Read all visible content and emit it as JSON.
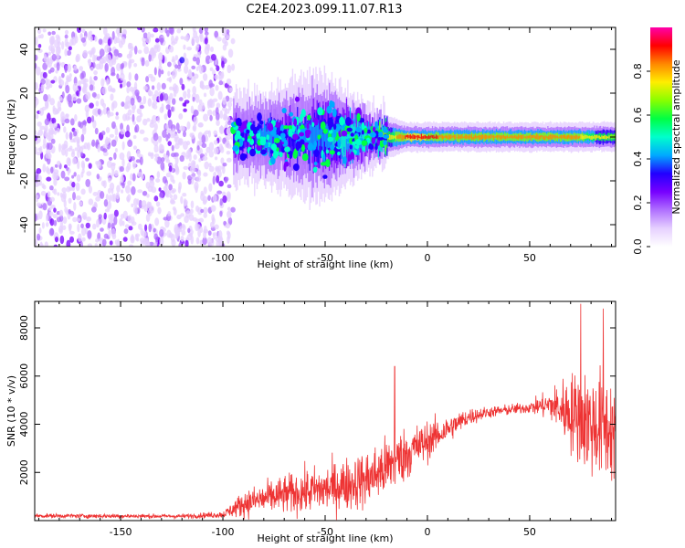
{
  "title": "C2E4.2023.099.11.07.R13",
  "colors": {
    "snr_line": "#ee3333",
    "background": "#ffffff",
    "colormap": [
      "#ffffff",
      "#e6d0ff",
      "#b070ff",
      "#7700ff",
      "#2200ff",
      "#00aaff",
      "#00ffcc",
      "#00ff44",
      "#88ff00",
      "#ffee00",
      "#ff8800",
      "#ff0000",
      "#ff00aa"
    ]
  },
  "chart_data": [
    {
      "type": "heatmap",
      "title": "",
      "xlabel": "Height of straight line (km)",
      "ylabel": "Frequency (Hz)",
      "xlim": [
        -192,
        92
      ],
      "ylim": [
        -50,
        50
      ],
      "xticks": [
        -150,
        -100,
        -50,
        0,
        50
      ],
      "yticks": [
        -40,
        -20,
        0,
        20,
        40
      ],
      "colorbar": {
        "label": "Normalized spectral amplitude",
        "range": [
          0,
          1
        ],
        "ticks": [
          "0.0",
          "0.2",
          "0.4",
          "0.6",
          "0.8"
        ],
        "tick_values": [
          0,
          0.2,
          0.4,
          0.6,
          0.8
        ]
      },
      "features": {
        "noise_region_x": [
          -192,
          -95
        ],
        "noise_frequency_span": [
          -50,
          50
        ],
        "signal_center_hz": 0,
        "signal_band": [
          {
            "x": -95,
            "halfwidth_hz": 8,
            "amp": 0.3
          },
          {
            "x": -80,
            "halfwidth_hz": 8,
            "amp": 0.4
          },
          {
            "x": -70,
            "halfwidth_hz": 10,
            "amp": 0.35
          },
          {
            "x": -50,
            "halfwidth_hz": 12,
            "amp": 0.45
          },
          {
            "x": -30,
            "halfwidth_hz": 6,
            "amp": 0.5
          },
          {
            "x": -10,
            "halfwidth_hz": 3,
            "amp": 0.9
          },
          {
            "x": 20,
            "halfwidth_hz": 3,
            "amp": 0.85
          },
          {
            "x": 50,
            "halfwidth_hz": 3,
            "amp": 0.8
          },
          {
            "x": 65,
            "halfwidth_hz": 3,
            "amp": 0.85
          },
          {
            "x": 90,
            "halfwidth_hz": 3,
            "amp": 0.7
          }
        ]
      }
    },
    {
      "type": "line",
      "title": "",
      "xlabel": "Height of straight line (km)",
      "ylabel": "SNR (10 * v/v)",
      "xlim": [
        -192,
        92
      ],
      "ylim": [
        0,
        9100
      ],
      "xticks": [
        -150,
        -100,
        -50,
        0,
        50
      ],
      "yticks": [
        2000,
        4000,
        6000,
        8000
      ],
      "series": [
        {
          "envelope": [
            {
              "x": -192,
              "mean": 200,
              "spread": 100
            },
            {
              "x": -120,
              "mean": 180,
              "spread": 100
            },
            {
              "x": -100,
              "mean": 250,
              "spread": 150
            },
            {
              "x": -90,
              "mean": 700,
              "spread": 600
            },
            {
              "x": -75,
              "mean": 1000,
              "spread": 800
            },
            {
              "x": -60,
              "mean": 1200,
              "spread": 1000
            },
            {
              "x": -50,
              "mean": 1300,
              "spread": 1100
            },
            {
              "x": -40,
              "mean": 1500,
              "spread": 1200
            },
            {
              "x": -30,
              "mean": 1700,
              "spread": 1300
            },
            {
              "x": -20,
              "mean": 2200,
              "spread": 1400
            },
            {
              "x": -10,
              "mean": 2800,
              "spread": 1200
            },
            {
              "x": 0,
              "mean": 3300,
              "spread": 900
            },
            {
              "x": 10,
              "mean": 3800,
              "spread": 600
            },
            {
              "x": 20,
              "mean": 4300,
              "spread": 400
            },
            {
              "x": 30,
              "mean": 4500,
              "spread": 250
            },
            {
              "x": 50,
              "mean": 4700,
              "spread": 250
            },
            {
              "x": 60,
              "mean": 4800,
              "spread": 700
            },
            {
              "x": 70,
              "mean": 4500,
              "spread": 1800
            },
            {
              "x": 80,
              "mean": 4000,
              "spread": 2500
            },
            {
              "x": 92,
              "mean": 3800,
              "spread": 2500
            }
          ],
          "peaks": [
            {
              "x": -16,
              "y": 6400
            },
            {
              "x": 75,
              "y": 9000
            },
            {
              "x": 86,
              "y": 8800
            }
          ]
        }
      ]
    }
  ]
}
